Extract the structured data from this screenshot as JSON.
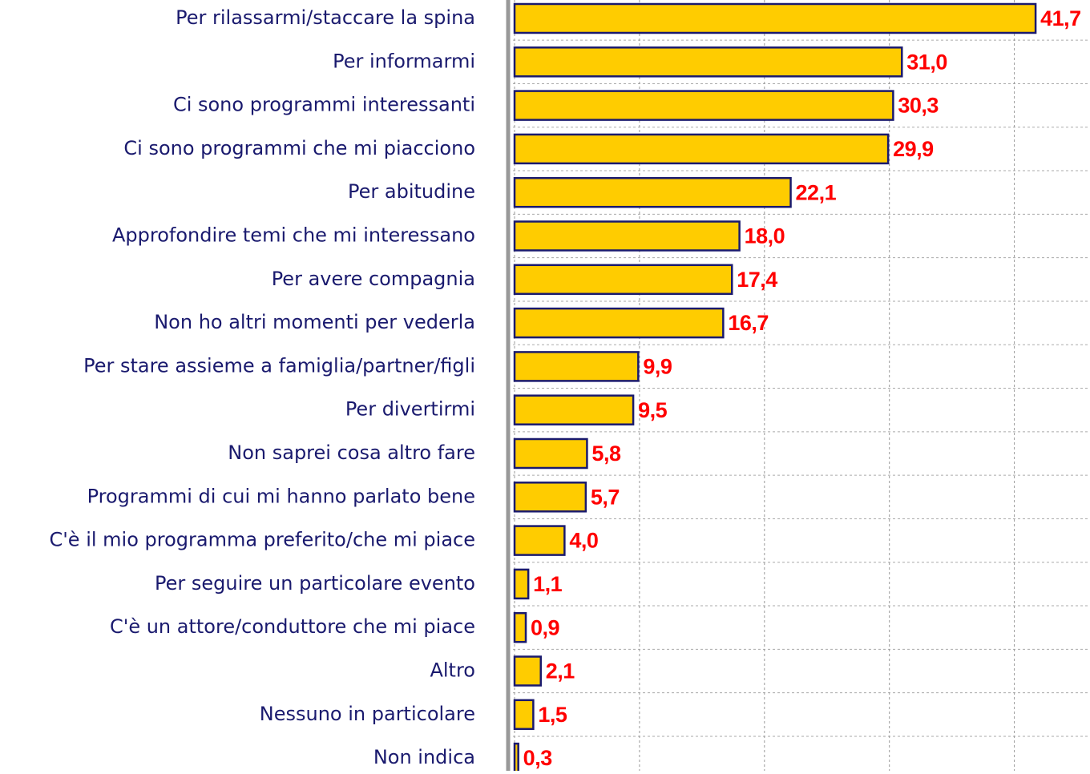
{
  "chart_data": {
    "type": "hbar",
    "categories": [
      "Per rilassarmi/staccare la spina",
      "Per informarmi",
      "Ci sono programmi interessanti",
      "Ci sono programmi che mi piacciono",
      "Per abitudine",
      "Approfondire temi che mi  interessano",
      "Per avere compagnia",
      "Non ho altri momenti per vederla",
      "Per stare assieme a famiglia/partner/figli",
      "Per divertirmi",
      "Non saprei cosa altro fare",
      "Programmi di cui mi hanno parlato bene",
      "C'è il mio programma preferito/che mi piace",
      "Per seguire un particolare evento",
      "C'è un attore/conduttore che mi piace",
      "Altro",
      "Nessuno in particolare",
      "Non indica"
    ],
    "values": [
      41.7,
      31.0,
      30.3,
      29.9,
      22.1,
      18.0,
      17.4,
      16.7,
      9.9,
      9.5,
      5.8,
      5.7,
      4.0,
      1.1,
      0.9,
      2.1,
      1.5,
      0.3
    ],
    "value_labels": [
      "41,7",
      "31,0",
      "30,3",
      "29,9",
      "22,1",
      "18,0",
      "17,4",
      "16,7",
      "9,9",
      "9,5",
      "5,8",
      "5,7",
      "4,0",
      "1,1",
      "0,9",
      "2,1",
      "1,5",
      "0,3"
    ],
    "color": "#ffcc00",
    "xlim": [
      0,
      46
    ],
    "xticks": [
      0,
      10,
      20,
      30,
      40
    ],
    "grid": true
  }
}
